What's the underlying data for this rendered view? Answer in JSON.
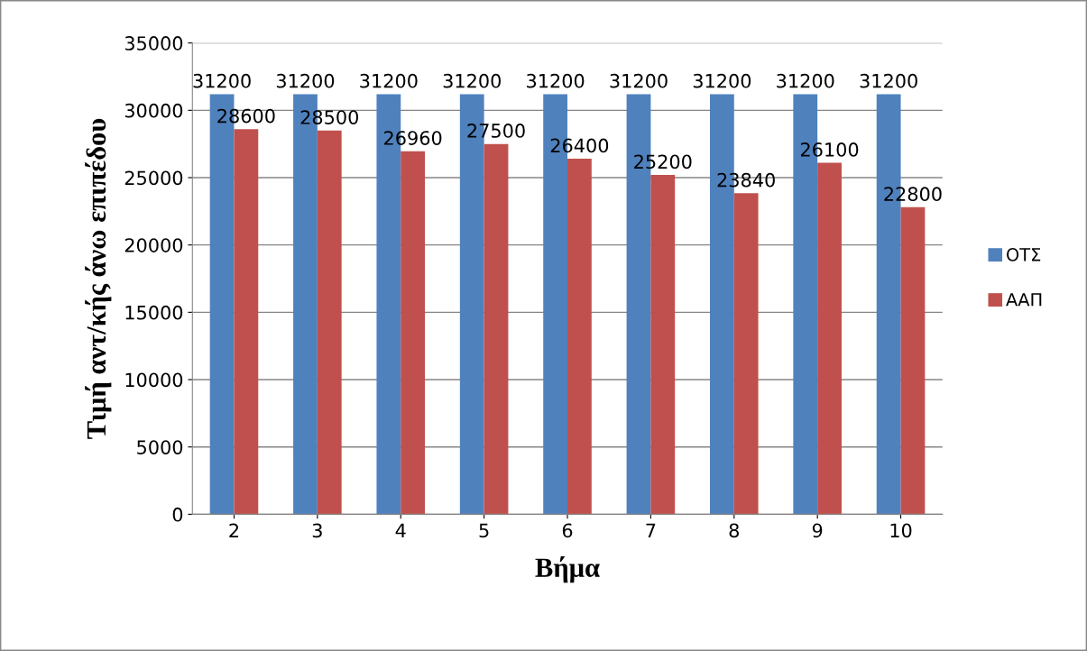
{
  "chart_data": {
    "type": "bar",
    "xlabel": "Βήμα",
    "ylabel": "Τιμή αντ/κής άνω επιπέδου",
    "categories": [
      "2",
      "3",
      "4",
      "5",
      "6",
      "7",
      "8",
      "9",
      "10"
    ],
    "series": [
      {
        "name": "ΟΤΣ",
        "color": "#4f81bd",
        "values": [
          31200,
          31200,
          31200,
          31200,
          31200,
          31200,
          31200,
          31200,
          31200
        ]
      },
      {
        "name": "ΑΑΠ",
        "color": "#c0504d",
        "values": [
          28600,
          28500,
          26960,
          27500,
          26400,
          25200,
          23840,
          26100,
          22800
        ]
      }
    ],
    "ylim": [
      0,
      35000
    ],
    "yticks": [
      0,
      5000,
      10000,
      15000,
      20000,
      25000,
      30000,
      35000
    ],
    "grid": "y",
    "legend": "right",
    "data_labels": true
  }
}
